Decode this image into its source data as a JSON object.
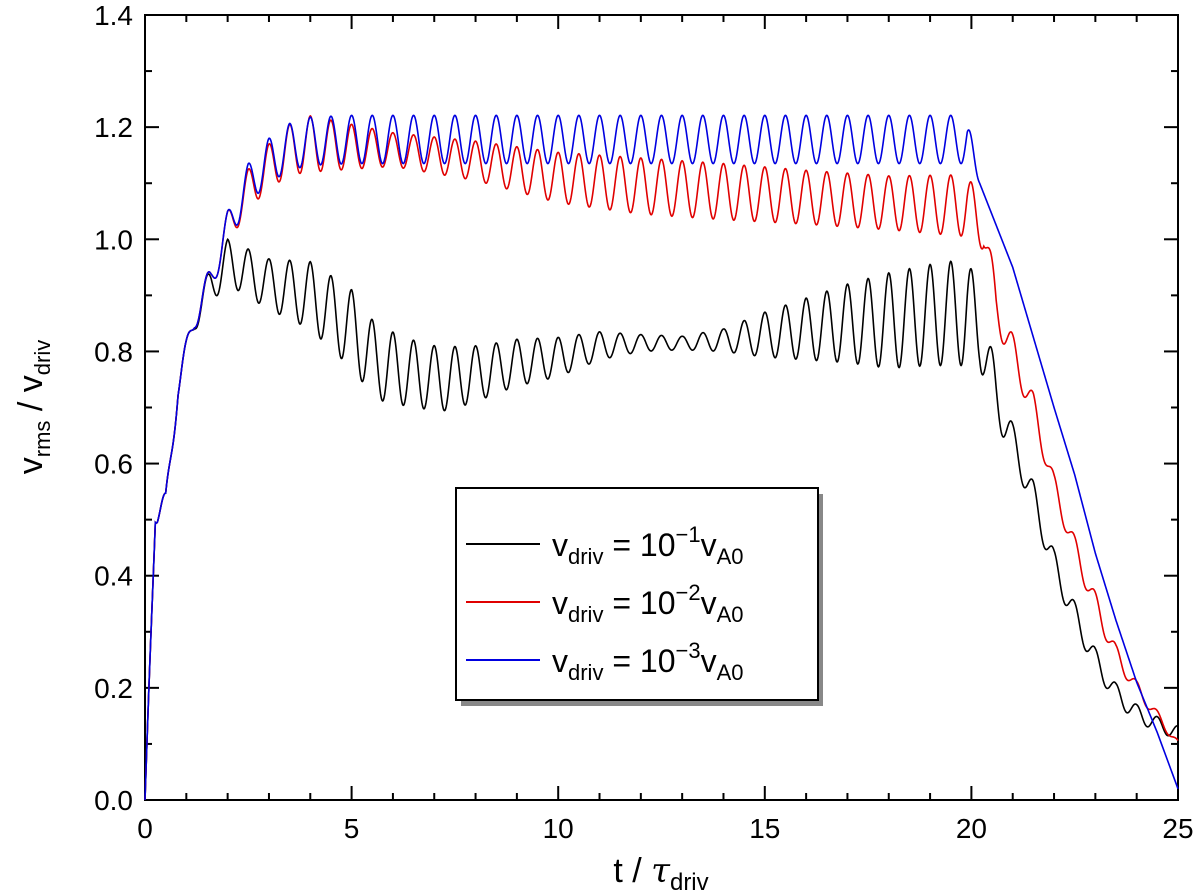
{
  "chart_data": {
    "type": "line",
    "title": "",
    "xlabel": {
      "base": "t / ",
      "symbol": "τ",
      "sub": "driv"
    },
    "ylabel": {
      "base": "v",
      "sub1": "rms",
      "mid": " / v",
      "sub2": "driv"
    },
    "xlim": [
      0,
      25
    ],
    "ylim": [
      0,
      1.4
    ],
    "x_ticks": [
      0,
      5,
      10,
      15,
      20,
      25
    ],
    "x_tick_labels": [
      "0",
      "5",
      "10",
      "15",
      "20",
      "25"
    ],
    "y_ticks": [
      0,
      0.2,
      0.4,
      0.6,
      0.8,
      1.0,
      1.2,
      1.4
    ],
    "y_tick_labels": [
      "0.0",
      "0.2",
      "0.4",
      "0.6",
      "0.8",
      "1.0",
      "1.2",
      "1.4"
    ],
    "grid": false,
    "legend_position": "center-bottom",
    "driving_period": 0.5,
    "series": [
      {
        "name": "v_driv = 10^-1 v_A0",
        "color": "#000000",
        "legend": {
          "v": "v",
          "sub": "driv",
          "eq": " = 10",
          "exp": "−1",
          "va": "v",
          "vasub": "A0"
        },
        "base_points": [
          [
            0,
            0
          ],
          [
            0.25,
            0.52
          ],
          [
            0.5,
            0.52
          ],
          [
            0.8,
            0.74
          ],
          [
            1.2,
            0.86
          ],
          [
            1.6,
            0.92
          ],
          [
            2.0,
            0.96
          ],
          [
            3.0,
            0.92
          ],
          [
            4.0,
            0.9
          ],
          [
            5.0,
            0.84
          ],
          [
            5.6,
            0.78
          ],
          [
            6.5,
            0.76
          ],
          [
            7.2,
            0.75
          ],
          [
            8.0,
            0.76
          ],
          [
            9.0,
            0.78
          ],
          [
            10.0,
            0.79
          ],
          [
            11.0,
            0.81
          ],
          [
            12.0,
            0.815
          ],
          [
            13.0,
            0.815
          ],
          [
            14.0,
            0.82
          ],
          [
            15.0,
            0.83
          ],
          [
            16.0,
            0.84
          ],
          [
            17.0,
            0.85
          ],
          [
            18.0,
            0.855
          ],
          [
            19.0,
            0.865
          ],
          [
            19.9,
            0.87
          ],
          [
            20.2,
            0.84
          ],
          [
            20.6,
            0.72
          ],
          [
            21.0,
            0.64
          ],
          [
            21.5,
            0.54
          ],
          [
            22.0,
            0.42
          ],
          [
            22.5,
            0.33
          ],
          [
            23.0,
            0.25
          ],
          [
            23.5,
            0.19
          ],
          [
            24.0,
            0.155
          ],
          [
            24.5,
            0.135
          ],
          [
            25.0,
            0.12
          ]
        ],
        "amp_points": [
          [
            0,
            0
          ],
          [
            0.3,
            0.03
          ],
          [
            1.0,
            0.02
          ],
          [
            1.5,
            0.03
          ],
          [
            2.0,
            0.04
          ],
          [
            3.0,
            0.045
          ],
          [
            4.0,
            0.06
          ],
          [
            5.0,
            0.07
          ],
          [
            6.5,
            0.06
          ],
          [
            7.5,
            0.055
          ],
          [
            8.5,
            0.045
          ],
          [
            10.0,
            0.035
          ],
          [
            11.0,
            0.025
          ],
          [
            12.0,
            0.015
          ],
          [
            13.0,
            0.012
          ],
          [
            14.0,
            0.02
          ],
          [
            15.0,
            0.04
          ],
          [
            16.0,
            0.055
          ],
          [
            17.0,
            0.07
          ],
          [
            18.0,
            0.085
          ],
          [
            19.0,
            0.09
          ],
          [
            19.9,
            0.095
          ],
          [
            20.3,
            0.06
          ],
          [
            21.0,
            0.03
          ],
          [
            22.0,
            0.025
          ],
          [
            23.0,
            0.02
          ],
          [
            24.0,
            0.015
          ],
          [
            25.0,
            0.012
          ]
        ]
      },
      {
        "name": "v_driv = 10^-2 v_A0",
        "color": "#e00000",
        "legend": {
          "v": "v",
          "sub": "driv",
          "eq": " = 10",
          "exp": "−2",
          "va": "v",
          "vasub": "A0"
        },
        "base_points": [
          [
            0,
            0
          ],
          [
            0.25,
            0.52
          ],
          [
            0.5,
            0.52
          ],
          [
            0.8,
            0.74
          ],
          [
            1.2,
            0.86
          ],
          [
            1.6,
            0.93
          ],
          [
            2.0,
            1.02
          ],
          [
            2.5,
            1.09
          ],
          [
            3.0,
            1.13
          ],
          [
            3.5,
            1.16
          ],
          [
            4.0,
            1.17
          ],
          [
            5.0,
            1.165
          ],
          [
            6.0,
            1.16
          ],
          [
            8.0,
            1.14
          ],
          [
            10.0,
            1.11
          ],
          [
            12.0,
            1.095
          ],
          [
            14.0,
            1.085
          ],
          [
            16.0,
            1.075
          ],
          [
            18.0,
            1.065
          ],
          [
            19.9,
            1.06
          ],
          [
            20.3,
            1.02
          ],
          [
            20.6,
            0.88
          ],
          [
            21.0,
            0.8
          ],
          [
            21.5,
            0.7
          ],
          [
            22.0,
            0.56
          ],
          [
            22.5,
            0.45
          ],
          [
            23.0,
            0.35
          ],
          [
            23.5,
            0.26
          ],
          [
            24.0,
            0.2
          ],
          [
            24.5,
            0.15
          ],
          [
            25.0,
            0.1
          ]
        ],
        "amp_points": [
          [
            0,
            0
          ],
          [
            0.3,
            0.03
          ],
          [
            1.0,
            0.02
          ],
          [
            2.0,
            0.03
          ],
          [
            3.0,
            0.04
          ],
          [
            4.0,
            0.05
          ],
          [
            5.0,
            0.04
          ],
          [
            6.0,
            0.03
          ],
          [
            8.0,
            0.035
          ],
          [
            10.0,
            0.045
          ],
          [
            12.0,
            0.05
          ],
          [
            14.0,
            0.05
          ],
          [
            16.0,
            0.048
          ],
          [
            18.0,
            0.048
          ],
          [
            19.9,
            0.055
          ],
          [
            20.3,
            0.04
          ],
          [
            21.0,
            0.03
          ],
          [
            22.0,
            0.02
          ],
          [
            23.0,
            0.02
          ],
          [
            24.0,
            0.012
          ],
          [
            25.0,
            0.006
          ]
        ]
      },
      {
        "name": "v_driv = 10^-3 v_A0",
        "color": "#0000e0",
        "legend": {
          "v": "v",
          "sub": "driv",
          "eq": " = 10",
          "exp": "−3",
          "va": "v",
          "vasub": "A0"
        },
        "base_points": [
          [
            0,
            0
          ],
          [
            0.25,
            0.52
          ],
          [
            0.5,
            0.52
          ],
          [
            0.8,
            0.74
          ],
          [
            1.2,
            0.86
          ],
          [
            1.6,
            0.93
          ],
          [
            2.0,
            1.02
          ],
          [
            2.5,
            1.1
          ],
          [
            3.0,
            1.14
          ],
          [
            3.5,
            1.165
          ],
          [
            4.0,
            1.175
          ],
          [
            5.0,
            1.178
          ],
          [
            10.0,
            1.178
          ],
          [
            15.0,
            1.178
          ],
          [
            19.9,
            1.178
          ],
          [
            20.2,
            1.1
          ],
          [
            21.0,
            0.95
          ],
          [
            22.0,
            0.7
          ],
          [
            22.5,
            0.58
          ],
          [
            23.0,
            0.44
          ],
          [
            23.5,
            0.32
          ],
          [
            24.0,
            0.21
          ],
          [
            24.5,
            0.12
          ],
          [
            25.0,
            0.02
          ]
        ],
        "amp_points": [
          [
            0,
            0
          ],
          [
            0.3,
            0.03
          ],
          [
            1.0,
            0.02
          ],
          [
            2.0,
            0.03
          ],
          [
            3.0,
            0.04
          ],
          [
            4.0,
            0.043
          ],
          [
            19.9,
            0.043
          ],
          [
            20.2,
            0.0
          ],
          [
            25.0,
            0.0
          ]
        ]
      }
    ]
  }
}
